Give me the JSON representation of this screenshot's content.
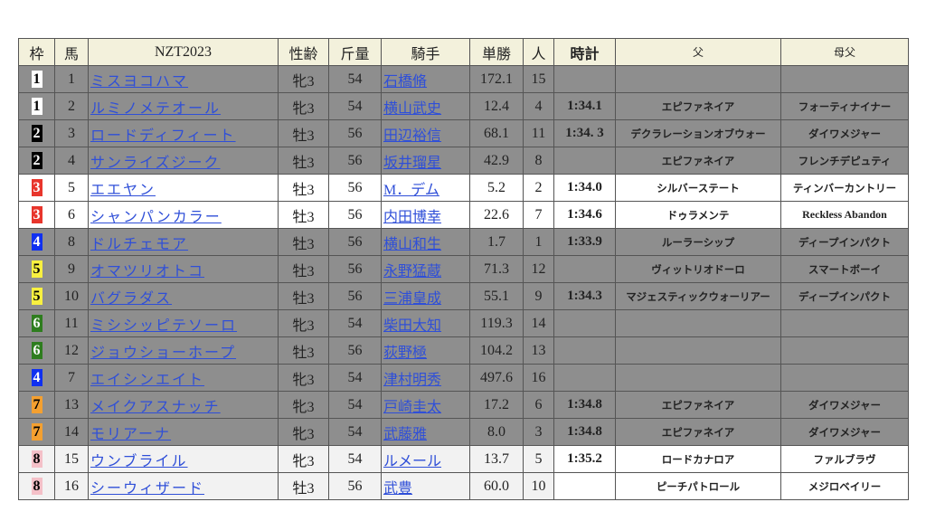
{
  "headers": [
    "枠",
    "馬",
    "NZT2023",
    "性齢",
    "斤量",
    "騎手",
    "単勝",
    "人",
    "時計",
    "父",
    "母父"
  ],
  "waku_colors": {
    "1": {
      "bg": "#ffffff",
      "fg": "#000000"
    },
    "2": {
      "bg": "#000000",
      "fg": "#ffffff"
    },
    "3": {
      "bg": "#e8352c",
      "fg": "#ffffff"
    },
    "4": {
      "bg": "#1030f0",
      "fg": "#ffffff"
    },
    "5": {
      "bg": "#f8f040",
      "fg": "#000000"
    },
    "6": {
      "bg": "#2e7d1e",
      "fg": "#ffffff"
    },
    "7": {
      "bg": "#f4a030",
      "fg": "#000000"
    },
    "8": {
      "bg": "#f4c0c8",
      "fg": "#000000"
    }
  },
  "rows": [
    {
      "waku": "1",
      "num": "1",
      "name": "ミスヨコハマ",
      "sex_age": "牝3",
      "weight": "54",
      "jockey": "石橋脩",
      "odds": "172.1",
      "pop": "15",
      "time": "",
      "sire": "",
      "dam_sire": "",
      "shade": "gray"
    },
    {
      "waku": "1",
      "num": "2",
      "name": "ルミノメテオール",
      "sex_age": "牝3",
      "weight": "54",
      "jockey": "横山武史",
      "odds": "12.4",
      "pop": "4",
      "time": "1:34.1",
      "sire": "エピファネイア",
      "dam_sire": "フォーティナイナー",
      "shade": "gray"
    },
    {
      "waku": "2",
      "num": "3",
      "name": "ロードディフィート",
      "sex_age": "牡3",
      "weight": "56",
      "jockey": "田辺裕信",
      "odds": "68.1",
      "pop": "11",
      "time": "1:34. 3",
      "sire": "デクラレーションオブウォー",
      "dam_sire": "ダイワメジャー",
      "shade": "gray"
    },
    {
      "waku": "2",
      "num": "4",
      "name": "サンライズジーク",
      "sex_age": "牡3",
      "weight": "56",
      "jockey": "坂井瑠星",
      "odds": "42.9",
      "pop": "8",
      "time": "",
      "sire": "エピファネイア",
      "dam_sire": "フレンチデピュティ",
      "shade": "gray"
    },
    {
      "waku": "3",
      "num": "5",
      "name": "エエヤン",
      "sex_age": "牡3",
      "weight": "56",
      "jockey": "M．デム",
      "odds": "5.2",
      "pop": "2",
      "time": "1:34.0",
      "sire": "シルバーステート",
      "dam_sire": "ティンバーカントリー",
      "shade": "white"
    },
    {
      "waku": "3",
      "num": "6",
      "name": "シャンパンカラー",
      "sex_age": "牡3",
      "weight": "56",
      "jockey": "内田博幸",
      "odds": "22.6",
      "pop": "7",
      "time": "1:34.6",
      "sire": "ドゥラメンテ",
      "dam_sire": "Reckless Abandon",
      "shade": "white"
    },
    {
      "waku": "4",
      "num": "8",
      "name": "ドルチェモア",
      "sex_age": "牡3",
      "weight": "56",
      "jockey": "横山和生",
      "odds": "1.7",
      "pop": "1",
      "time": "1:33.9",
      "sire": "ルーラーシップ",
      "dam_sire": "ディープインパクト",
      "shade": "gray"
    },
    {
      "waku": "5",
      "num": "9",
      "name": "オマツリオトコ",
      "sex_age": "牡3",
      "weight": "56",
      "jockey": "永野猛蔵",
      "odds": "71.3",
      "pop": "12",
      "time": "",
      "sire": "ヴィットリオドーロ",
      "dam_sire": "スマートボーイ",
      "shade": "gray"
    },
    {
      "waku": "5",
      "num": "10",
      "name": "バグラダス",
      "sex_age": "牡3",
      "weight": "56",
      "jockey": "三浦皇成",
      "odds": "55.1",
      "pop": "9",
      "time": "1:34.3",
      "sire": "マジェスティックウォーリアー",
      "dam_sire": "ディープインパクト",
      "shade": "gray"
    },
    {
      "waku": "6",
      "num": "11",
      "name": "ミシシッピテソーロ",
      "sex_age": "牝3",
      "weight": "54",
      "jockey": "柴田大知",
      "odds": "119.3",
      "pop": "14",
      "time": "",
      "sire": "",
      "dam_sire": "",
      "shade": "gray"
    },
    {
      "waku": "6",
      "num": "12",
      "name": "ジョウショーホープ",
      "sex_age": "牡3",
      "weight": "56",
      "jockey": "荻野極",
      "odds": "104.2",
      "pop": "13",
      "time": "",
      "sire": "",
      "dam_sire": "",
      "shade": "gray"
    },
    {
      "waku": "4",
      "num": "7",
      "name": "エイシンエイト",
      "sex_age": "牝3",
      "weight": "54",
      "jockey": "津村明秀",
      "odds": "497.6",
      "pop": "16",
      "time": "",
      "sire": "",
      "dam_sire": "",
      "shade": "gray"
    },
    {
      "waku": "7",
      "num": "13",
      "name": "メイクアスナッチ",
      "sex_age": "牝3",
      "weight": "54",
      "jockey": "戸崎圭太",
      "odds": "17.2",
      "pop": "6",
      "time": "1:34.8",
      "sire": "エピファネイア",
      "dam_sire": "ダイワメジャー",
      "shade": "gray"
    },
    {
      "waku": "7",
      "num": "14",
      "name": "モリアーナ",
      "sex_age": "牝3",
      "weight": "54",
      "jockey": "武藤雅",
      "odds": "8.0",
      "pop": "3",
      "time": "1:34.8",
      "sire": "エピファネイア",
      "dam_sire": "ダイワメジャー",
      "shade": "gray"
    },
    {
      "waku": "8",
      "num": "15",
      "name": "ウンブライル",
      "sex_age": "牝3",
      "weight": "54",
      "jockey": "ルメール",
      "odds": "13.7",
      "pop": "5",
      "time": "1:35.2",
      "sire": "ロードカナロア",
      "dam_sire": "ファルブラヴ",
      "shade": "light"
    },
    {
      "waku": "8",
      "num": "16",
      "name": "シーウィザード",
      "sex_age": "牡3",
      "weight": "56",
      "jockey": "武豊",
      "odds": "60.0",
      "pop": "10",
      "time": "",
      "sire": "ピーチパトロール",
      "dam_sire": "メジロベイリー",
      "shade": "light"
    }
  ]
}
